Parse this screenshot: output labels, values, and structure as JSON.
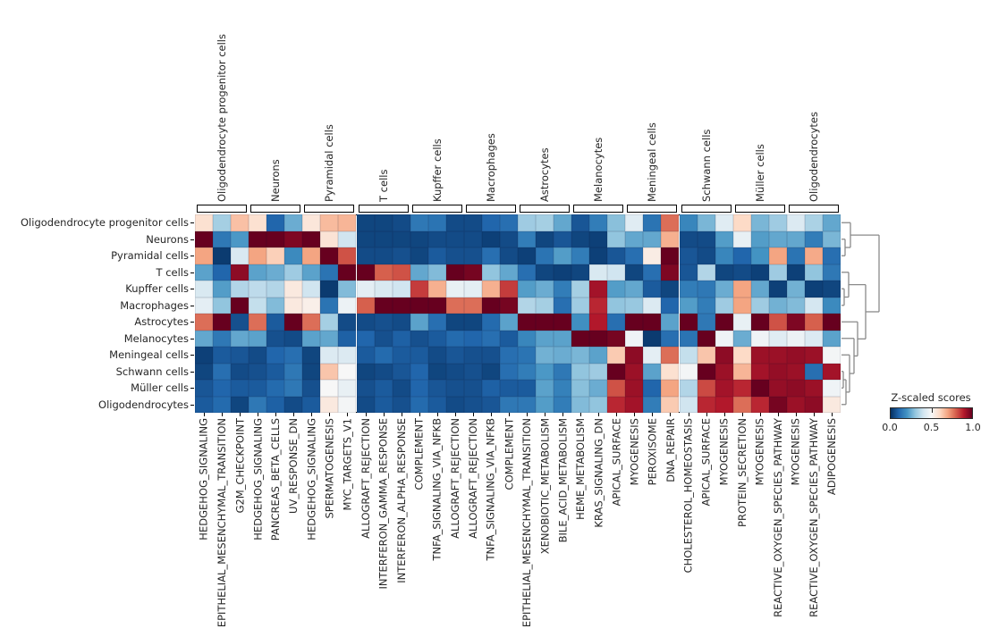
{
  "chart_data": {
    "type": "heatmap",
    "title": "",
    "rows": [
      "Oligodendrocyte progenitor cells",
      "Neurons",
      "Pyramidal cells",
      "T cells",
      "Kupffer cells",
      "Macrophages",
      "Astrocytes",
      "Melanocytes",
      "Meningeal cells",
      "Schwann cells",
      "Müller cells",
      "Oligodendrocytes"
    ],
    "columns": [
      "HEDGEHOG_SIGNALING",
      "EPITHELIAL_MESENCHYMAL_TRANSITION",
      "G2M_CHECKPOINT",
      "HEDGEHOG_SIGNALING",
      "PANCREAS_BETA_CELLS",
      "UV_RESPONSE_DN",
      "HEDGEHOG_SIGNALING",
      "SPERMATOGENESIS",
      "MYC_TARGETS_V1",
      "ALLOGRAFT_REJECTION",
      "INTERFERON_GAMMA_RESPONSE",
      "INTERFERON_ALPHA_RESPONSE",
      "COMPLEMENT",
      "TNFA_SIGNALING_VIA_NFKB",
      "ALLOGRAFT_REJECTION",
      "ALLOGRAFT_REJECTION",
      "TNFA_SIGNALING_VIA_NFKB",
      "COMPLEMENT",
      "EPITHELIAL_MESENCHYMAL_TRANSITION",
      "XENOBIOTIC_METABOLISM",
      "BILE_ACID_METABOLISM",
      "HEME_METABOLISM",
      "KRAS_SIGNALING_DN",
      "APICAL_SURFACE",
      "MYOGENESIS",
      "PEROXISOME",
      "DNA_REPAIR",
      "CHOLESTEROL_HOMEOSTASIS",
      "APICAL_SURFACE",
      "MYOGENESIS",
      "PROTEIN_SECRETION",
      "MYOGENESIS",
      "REACTIVE_OXYGEN_SPECIES_PATHWAY",
      "MYOGENESIS",
      "REACTIVE_OXYGEN_SPECIES_PATHWAY",
      "ADIPOGENESIS"
    ],
    "column_groups": [
      {
        "label": "Oligodendrocyte progenitor cells",
        "span": 3
      },
      {
        "label": "Neurons",
        "span": 3
      },
      {
        "label": "Pyramidal cells",
        "span": 3
      },
      {
        "label": "T cells",
        "span": 3
      },
      {
        "label": "Kupffer cells",
        "span": 3
      },
      {
        "label": "Macrophages",
        "span": 3
      },
      {
        "label": "Astrocytes",
        "span": 3
      },
      {
        "label": "Melanocytes",
        "span": 3
      },
      {
        "label": "Meningeal cells",
        "span": 3
      },
      {
        "label": "Schwann cells",
        "span": 3
      },
      {
        "label": "Müller cells",
        "span": 3
      },
      {
        "label": "Oligodendrocytes",
        "span": 3
      }
    ],
    "values": [
      [
        0.58,
        0.33,
        0.65,
        0.58,
        0.1,
        0.25,
        0.56,
        0.66,
        0.67,
        0.04,
        0.04,
        0.05,
        0.14,
        0.13,
        0.05,
        0.05,
        0.1,
        0.12,
        0.32,
        0.33,
        0.24,
        0.07,
        0.15,
        0.29,
        0.44,
        0.13,
        0.78,
        0.17,
        0.27,
        0.44,
        0.6,
        0.27,
        0.32,
        0.43,
        0.34,
        0.24
      ],
      [
        1.0,
        0.14,
        0.21,
        1.0,
        1.0,
        0.97,
        1.0,
        0.57,
        0.4,
        0.04,
        0.04,
        0.04,
        0.04,
        0.05,
        0.05,
        0.05,
        0.03,
        0.05,
        0.15,
        0.04,
        0.07,
        0.04,
        0.03,
        0.3,
        0.24,
        0.24,
        0.68,
        0.05,
        0.05,
        0.22,
        0.46,
        0.22,
        0.24,
        0.24,
        0.15,
        0.27
      ],
      [
        0.7,
        0.02,
        0.42,
        0.7,
        0.62,
        0.18,
        0.7,
        1.0,
        0.82,
        0.05,
        0.05,
        0.06,
        0.04,
        0.08,
        0.06,
        0.06,
        0.12,
        0.05,
        0.03,
        0.13,
        0.22,
        0.15,
        0.03,
        0.07,
        0.12,
        0.54,
        1.0,
        0.07,
        0.05,
        0.17,
        0.1,
        0.2,
        0.7,
        0.13,
        0.69,
        0.12
      ],
      [
        0.23,
        0.1,
        0.95,
        0.23,
        0.25,
        0.32,
        0.23,
        0.13,
        1.0,
        1.0,
        0.8,
        0.82,
        0.24,
        0.28,
        1.0,
        0.98,
        0.3,
        0.24,
        0.12,
        0.04,
        0.03,
        0.04,
        0.42,
        0.4,
        0.04,
        0.12,
        0.97,
        0.07,
        0.35,
        0.04,
        0.05,
        0.03,
        0.32,
        0.03,
        0.3,
        0.14
      ],
      [
        0.42,
        0.22,
        0.35,
        0.37,
        0.35,
        0.55,
        0.4,
        0.02,
        0.28,
        0.45,
        0.42,
        0.4,
        0.85,
        0.68,
        0.46,
        0.45,
        0.68,
        0.85,
        0.22,
        0.25,
        0.15,
        0.33,
        0.92,
        0.22,
        0.24,
        0.08,
        0.04,
        0.15,
        0.14,
        0.25,
        0.7,
        0.24,
        0.03,
        0.26,
        0.03,
        0.04
      ],
      [
        0.45,
        0.3,
        1.0,
        0.38,
        0.28,
        0.55,
        0.53,
        0.13,
        0.47,
        0.8,
        1.0,
        1.0,
        1.0,
        1.0,
        0.78,
        0.78,
        1.0,
        0.98,
        0.35,
        0.33,
        0.12,
        0.32,
        0.88,
        0.3,
        0.31,
        0.43,
        0.1,
        0.22,
        0.15,
        0.32,
        0.7,
        0.32,
        0.26,
        0.28,
        0.41,
        0.18
      ],
      [
        0.78,
        1.0,
        0.06,
        0.78,
        0.08,
        1.0,
        0.78,
        0.33,
        0.05,
        0.05,
        0.06,
        0.05,
        0.23,
        0.12,
        0.04,
        0.04,
        0.11,
        0.23,
        1.0,
        1.0,
        1.0,
        0.19,
        0.9,
        0.12,
        1.0,
        1.0,
        0.23,
        1.0,
        0.14,
        1.0,
        0.46,
        1.0,
        0.82,
        0.97,
        0.8,
        1.0
      ],
      [
        0.24,
        0.14,
        0.24,
        0.23,
        0.06,
        0.05,
        0.23,
        0.24,
        0.09,
        0.1,
        0.06,
        0.09,
        0.06,
        0.08,
        0.11,
        0.1,
        0.12,
        0.08,
        0.17,
        0.23,
        0.23,
        1.0,
        1.0,
        0.98,
        0.48,
        0.02,
        0.12,
        0.13,
        1.0,
        0.48,
        0.25,
        0.48,
        0.44,
        0.47,
        0.43,
        0.23
      ],
      [
        0.03,
        0.08,
        0.07,
        0.05,
        0.1,
        0.12,
        0.04,
        0.43,
        0.43,
        0.08,
        0.11,
        0.08,
        0.08,
        0.05,
        0.07,
        0.06,
        0.06,
        0.12,
        0.13,
        0.26,
        0.25,
        0.27,
        0.23,
        0.63,
        0.95,
        0.45,
        0.78,
        0.38,
        0.64,
        0.95,
        0.6,
        0.93,
        0.93,
        0.94,
        0.93,
        0.49
      ],
      [
        0.04,
        0.12,
        0.05,
        0.06,
        0.08,
        0.14,
        0.04,
        0.64,
        0.5,
        0.04,
        0.05,
        0.07,
        0.1,
        0.04,
        0.05,
        0.06,
        0.04,
        0.12,
        0.15,
        0.21,
        0.14,
        0.3,
        0.32,
        1.0,
        0.93,
        0.23,
        0.58,
        0.49,
        1.0,
        0.93,
        0.67,
        0.92,
        0.94,
        0.93,
        0.12,
        0.92
      ],
      [
        0.07,
        0.1,
        0.08,
        0.08,
        0.11,
        0.14,
        0.06,
        0.5,
        0.46,
        0.06,
        0.08,
        0.05,
        0.1,
        0.07,
        0.06,
        0.06,
        0.09,
        0.08,
        0.08,
        0.23,
        0.16,
        0.29,
        0.25,
        0.82,
        0.93,
        0.1,
        0.7,
        0.35,
        0.83,
        0.92,
        0.88,
        1.0,
        0.94,
        0.95,
        0.93,
        0.48
      ],
      [
        0.08,
        0.11,
        0.04,
        0.14,
        0.09,
        0.05,
        0.08,
        0.55,
        0.49,
        0.05,
        0.08,
        0.06,
        0.11,
        0.08,
        0.05,
        0.06,
        0.07,
        0.14,
        0.14,
        0.22,
        0.15,
        0.28,
        0.3,
        0.88,
        0.92,
        0.15,
        0.63,
        0.4,
        0.88,
        0.9,
        0.78,
        0.88,
        0.98,
        0.93,
        0.95,
        0.55
      ]
    ],
    "value_range": [
      0.0,
      1.0
    ],
    "colormap": "RdBu_r",
    "colormap_anchors": [
      "#053061",
      "#2166ac",
      "#4393c3",
      "#92c5de",
      "#d1e5f0",
      "#f7f7f7",
      "#fddbc7",
      "#f4a582",
      "#d6604d",
      "#b2182b",
      "#67001f"
    ],
    "colorbar": {
      "title": "Z-scaled scores",
      "ticks": [
        "0.0",
        "0.5",
        "1.0"
      ]
    },
    "row_dendrogram": {
      "orientation": "right",
      "merges": [
        {
          "a": 1,
          "b": 2,
          "x": 4
        },
        {
          "a": 0,
          "b": 12,
          "x": 10
        },
        {
          "a": 4,
          "b": 5,
          "x": 3
        },
        {
          "a": 3,
          "b": 14,
          "x": 8
        },
        {
          "a": 9,
          "b": 10,
          "x": 2
        },
        {
          "a": 16,
          "b": 11,
          "x": 5
        },
        {
          "a": 8,
          "b": 17,
          "x": 9
        },
        {
          "a": 7,
          "b": 18,
          "x": 14
        },
        {
          "a": 6,
          "b": 19,
          "x": 18
        },
        {
          "a": 15,
          "b": 20,
          "x": 27
        },
        {
          "a": 13,
          "b": 21,
          "x": 42
        }
      ]
    },
    "legend_position": "right",
    "grid": false
  }
}
